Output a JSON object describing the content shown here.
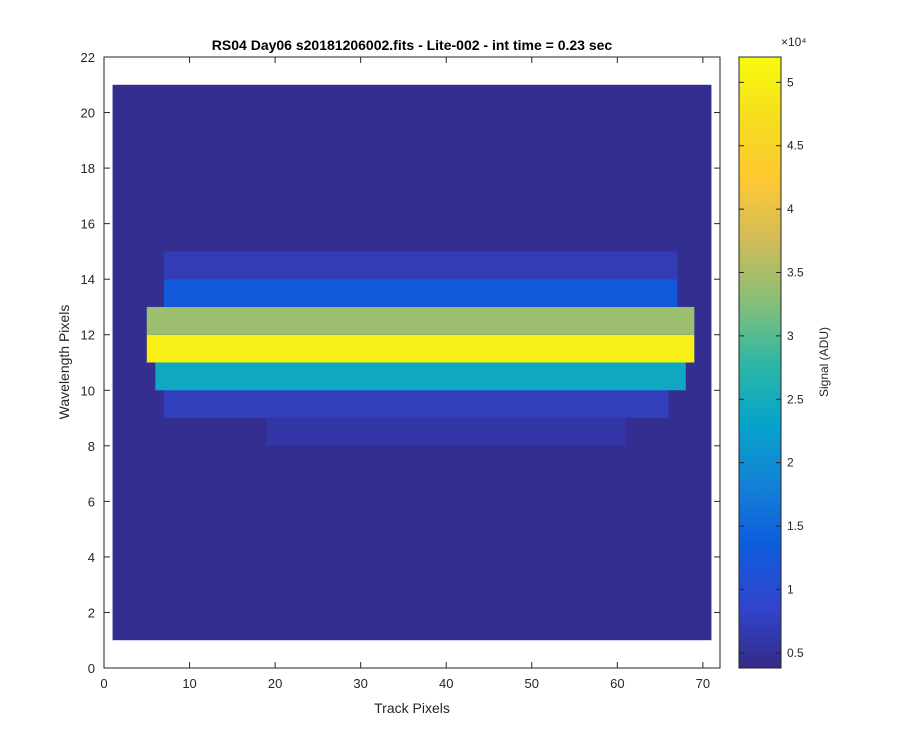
{
  "chart_data": {
    "type": "heatmap",
    "title": "RS04 Day06  s20181206002.fits - Lite-002 - int time = 0.23 sec",
    "xlabel": "Track Pixels",
    "ylabel": "Wavelength Pixels",
    "xlim": [
      0,
      72
    ],
    "ylim": [
      0,
      22
    ],
    "xticks": [
      "0",
      "10",
      "20",
      "30",
      "40",
      "50",
      "60",
      "70"
    ],
    "yticks": [
      "0",
      "2",
      "4",
      "6",
      "8",
      "10",
      "12",
      "14",
      "16",
      "18",
      "20",
      "22"
    ],
    "colormap": "parula",
    "colorbar": {
      "label": "Signal (ADU)",
      "multiplier": "×10⁴",
      "range": [
        0.38,
        5.2
      ],
      "ticks": [
        "0.5",
        "1",
        "1.5",
        "2",
        "2.5",
        "3",
        "3.5",
        "4",
        "4.5",
        "5"
      ]
    },
    "grid": false,
    "image_extent": {
      "x": [
        1,
        71
      ],
      "y": [
        1,
        21
      ]
    },
    "background_level": 0.45,
    "rows": [
      {
        "row": 8,
        "x_start": 19,
        "x_end": 61,
        "value": 0.6
      },
      {
        "row": 9,
        "x_start": 7,
        "x_end": 66,
        "value": 0.75
      },
      {
        "row": 10,
        "x_start": 6,
        "x_end": 68,
        "value": 2.4
      },
      {
        "row": 11,
        "x_start": 5,
        "x_end": 69,
        "value": 5.0
      },
      {
        "row": 12,
        "x_start": 5,
        "x_end": 69,
        "value": 3.4
      },
      {
        "row": 13,
        "x_start": 7,
        "x_end": 67,
        "value": 1.3
      },
      {
        "row": 14,
        "x_start": 7,
        "x_end": 67,
        "value": 0.7
      }
    ]
  }
}
